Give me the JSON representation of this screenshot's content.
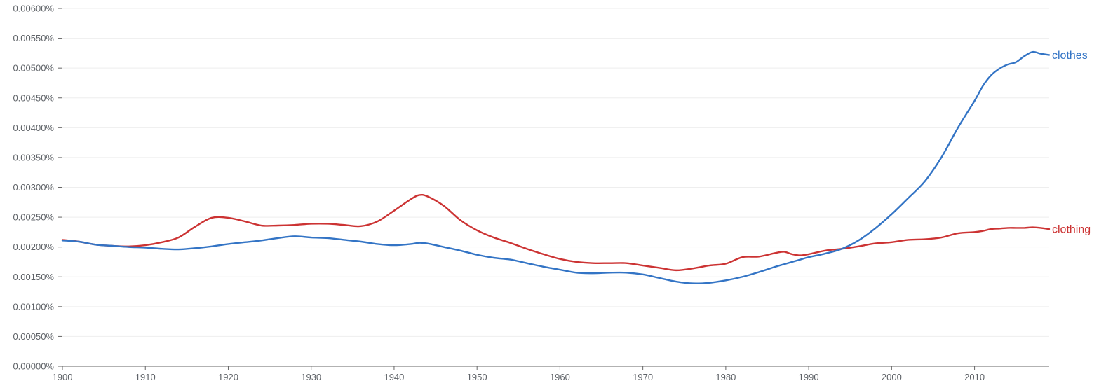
{
  "chart_data": {
    "type": "line",
    "x": [
      1900,
      1902,
      1904,
      1906,
      1908,
      1910,
      1912,
      1914,
      1916,
      1918,
      1920,
      1922,
      1924,
      1926,
      1928,
      1930,
      1932,
      1934,
      1936,
      1938,
      1940,
      1942,
      1943,
      1944,
      1946,
      1948,
      1950,
      1952,
      1954,
      1956,
      1958,
      1960,
      1962,
      1964,
      1966,
      1968,
      1970,
      1972,
      1974,
      1976,
      1978,
      1980,
      1982,
      1984,
      1986,
      1987,
      1988,
      1989,
      1990,
      1992,
      1994,
      1996,
      1998,
      2000,
      2002,
      2004,
      2006,
      2008,
      2010,
      2011,
      2012,
      2013,
      2014,
      2015,
      2016,
      2017,
      2018,
      2019
    ],
    "series": [
      {
        "name": "clothes",
        "color": "#3374c5",
        "values": [
          0.00211,
          0.00209,
          0.00204,
          0.00202,
          0.002,
          0.00199,
          0.00197,
          0.00196,
          0.00198,
          0.00201,
          0.00205,
          0.00208,
          0.00211,
          0.00215,
          0.00218,
          0.00216,
          0.00215,
          0.00212,
          0.00209,
          0.00205,
          0.00203,
          0.00205,
          0.00207,
          0.00206,
          0.002,
          0.00194,
          0.00187,
          0.00182,
          0.00179,
          0.00173,
          0.00167,
          0.00162,
          0.00157,
          0.00156,
          0.00157,
          0.00157,
          0.00154,
          0.00148,
          0.00142,
          0.00139,
          0.0014,
          0.00144,
          0.0015,
          0.00158,
          0.00167,
          0.00171,
          0.00175,
          0.00179,
          0.00183,
          0.00189,
          0.00197,
          0.00211,
          0.00231,
          0.00255,
          0.00282,
          0.0031,
          0.0035,
          0.004,
          0.00445,
          0.0047,
          0.00488,
          0.00499,
          0.00506,
          0.0051,
          0.0052,
          0.00527,
          0.00524,
          0.00522
        ]
      },
      {
        "name": "clothing",
        "color": "#cc3333",
        "values": [
          0.00212,
          0.00209,
          0.00204,
          0.00202,
          0.00201,
          0.00203,
          0.00208,
          0.00216,
          0.00234,
          0.00249,
          0.00249,
          0.00243,
          0.00236,
          0.00236,
          0.00237,
          0.00239,
          0.00239,
          0.00237,
          0.00235,
          0.00243,
          0.00261,
          0.0028,
          0.00287,
          0.00285,
          0.00269,
          0.00245,
          0.00228,
          0.00216,
          0.00207,
          0.00197,
          0.00188,
          0.0018,
          0.00175,
          0.00173,
          0.00173,
          0.00173,
          0.00169,
          0.00165,
          0.00161,
          0.00164,
          0.00169,
          0.00172,
          0.00183,
          0.00184,
          0.0019,
          0.00192,
          0.00188,
          0.00186,
          0.00188,
          0.00194,
          0.00197,
          0.00201,
          0.00206,
          0.00208,
          0.00212,
          0.00213,
          0.00216,
          0.00223,
          0.00225,
          0.00227,
          0.0023,
          0.00231,
          0.00232,
          0.00232,
          0.00232,
          0.00233,
          0.00232,
          0.0023
        ]
      }
    ],
    "xlim": [
      1900,
      2019
    ],
    "ylim": [
      0,
      0.006
    ],
    "x_ticks": [
      1900,
      1910,
      1920,
      1930,
      1940,
      1950,
      1960,
      1970,
      1980,
      1990,
      2000,
      2010
    ],
    "y_ticks": [
      0,
      0.0005,
      0.001,
      0.0015,
      0.002,
      0.0025,
      0.003,
      0.0035,
      0.004,
      0.0045,
      0.005,
      0.0055,
      0.006
    ],
    "y_tick_labels": [
      "0.00000%",
      "0.00050%",
      "0.00100%",
      "0.00150%",
      "0.00200%",
      "0.00250%",
      "0.00300%",
      "0.00350%",
      "0.00400%",
      "0.00450%",
      "0.00500%",
      "0.00550%",
      "0.00600%"
    ],
    "grid": true,
    "legend": "inline labels at right end of each line",
    "title": "",
    "xlabel": "",
    "ylabel": ""
  }
}
